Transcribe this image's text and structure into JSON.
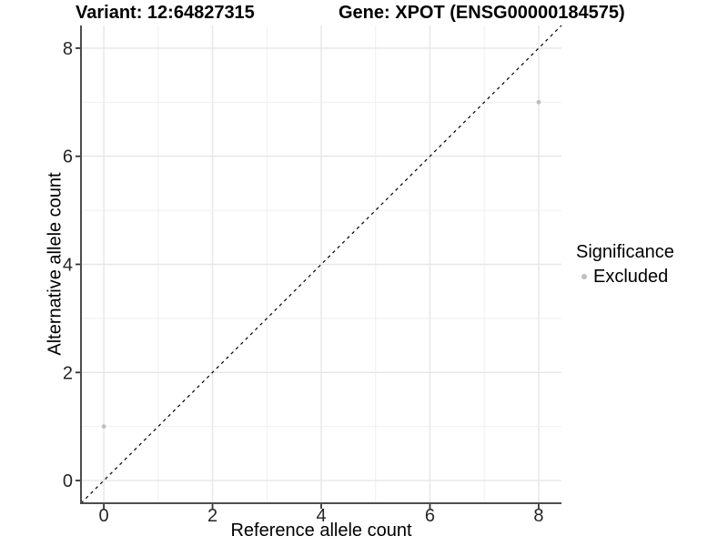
{
  "chart_data": {
    "type": "scatter",
    "title_variant": "Variant: 12:64827315",
    "title_gene": "Gene: XPOT (ENSG00000184575)",
    "xlabel": "Reference allele count",
    "ylabel": "Alternative allele count",
    "xlim": [
      -0.42,
      8.42
    ],
    "ylim": [
      -0.42,
      8.42
    ],
    "x_ticks": [
      0,
      2,
      4,
      6,
      8
    ],
    "y_ticks": [
      0,
      2,
      4,
      6,
      8
    ],
    "grid": {
      "major_every": 2,
      "minor_every": 1,
      "visible": true
    },
    "points": [
      {
        "x": 0,
        "y": 1,
        "significance": "Excluded"
      },
      {
        "x": 8,
        "y": 7,
        "significance": "Excluded"
      }
    ],
    "identity_line": {
      "style": "dashed",
      "color": "#000000",
      "from": -0.42,
      "to": 8.42
    },
    "legend": {
      "title": "Significance",
      "position": "right",
      "items": [
        {
          "label": "Excluded",
          "color": "#bfbfbf"
        }
      ]
    },
    "colors": {
      "point": "#bfbfbf",
      "grid_major": "#e6e6e6",
      "grid_minor": "#efefef",
      "axis_line": "#4d4d4d",
      "tick_mark": "#333333",
      "tick_label": "#262626",
      "background": "#ffffff"
    }
  }
}
